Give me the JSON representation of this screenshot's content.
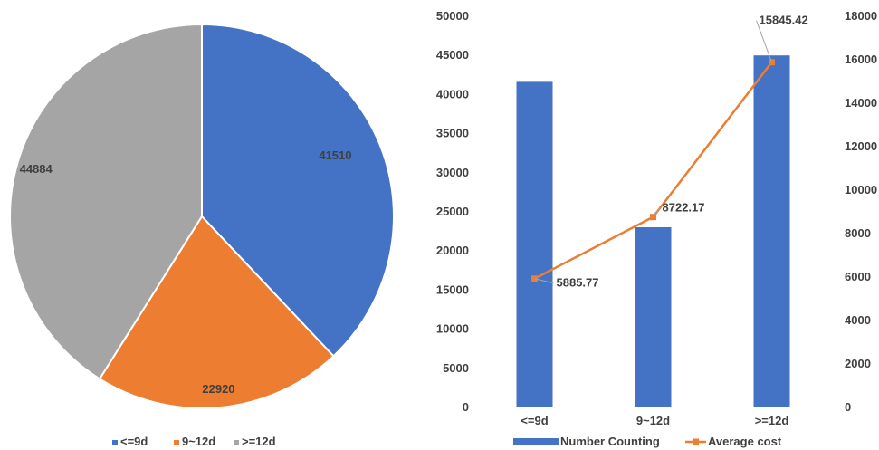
{
  "chart_data": [
    {
      "type": "pie",
      "categories": [
        "<=9d",
        "9~12d",
        ">=12d"
      ],
      "values": [
        41510,
        22920,
        44884
      ],
      "colors": [
        "#4472C4",
        "#ED7D31",
        "#A5A5A5"
      ],
      "legend": {
        "position": "bottom"
      }
    },
    {
      "type": "bar",
      "categories": [
        "<=9d",
        "9~12d",
        ">=12d"
      ],
      "series": [
        {
          "name": "Number Counting",
          "type": "bar",
          "axis": "left",
          "values": [
            41510,
            22920,
            44884
          ],
          "color": "#4472C4"
        },
        {
          "name": "Average cost",
          "type": "line",
          "axis": "right",
          "values": [
            5885.77,
            8722.17,
            15845.42
          ],
          "labels": [
            "5885.77",
            "8722.17",
            "15845.42"
          ],
          "color": "#ED7D31"
        }
      ],
      "y_left": {
        "min": 0,
        "max": 50000,
        "ticks": [
          "0",
          "5000",
          "10000",
          "15000",
          "20000",
          "25000",
          "30000",
          "35000",
          "40000",
          "45000",
          "50000"
        ]
      },
      "y_right": {
        "min": 0,
        "max": 18000,
        "ticks": [
          "0",
          "2000",
          "4000",
          "6000",
          "8000",
          "10000",
          "12000",
          "14000",
          "16000",
          "18000"
        ]
      },
      "grid": false,
      "legend": {
        "position": "bottom"
      }
    }
  ]
}
